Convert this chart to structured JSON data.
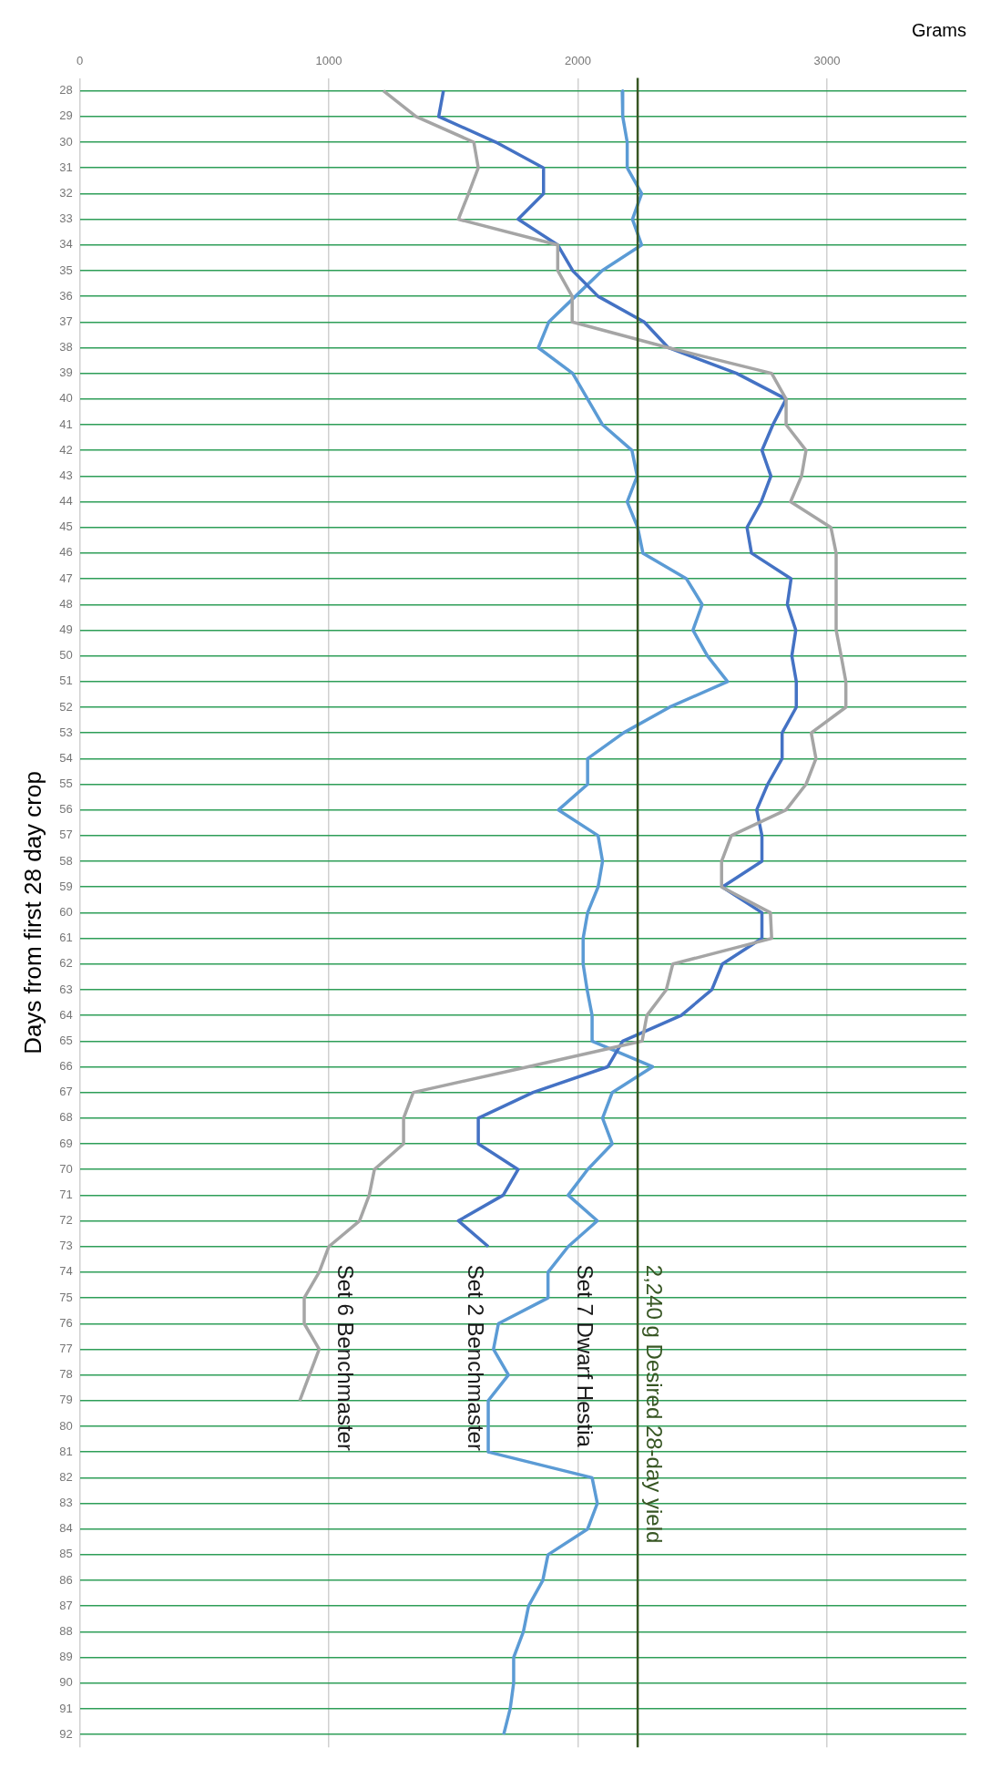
{
  "chart_data": {
    "type": "line",
    "orientation": "horizontal",
    "xlabel": "Grams",
    "ylabel": "Days from first 28 day crop",
    "categories": [
      "28",
      "29",
      "30",
      "31",
      "32",
      "33",
      "34",
      "35",
      "36",
      "37",
      "38",
      "39",
      "40",
      "41",
      "42",
      "43",
      "44",
      "45",
      "46",
      "47",
      "48",
      "49",
      "50",
      "51",
      "52",
      "53",
      "54",
      "55",
      "56",
      "57",
      "58",
      "59",
      "60",
      "61",
      "62",
      "63",
      "64",
      "65",
      "66",
      "67",
      "68",
      "69",
      "70",
      "71",
      "72",
      "73",
      "74",
      "75",
      "76",
      "77",
      "78",
      "79",
      "80",
      "81",
      "82",
      "83",
      "84",
      "85",
      "86",
      "87",
      "88",
      "89",
      "90",
      "91",
      "92"
    ],
    "xlim": [
      0,
      3560
    ],
    "xticks": [
      0,
      1000,
      2000,
      3000
    ],
    "grid": true,
    "legend": false,
    "marker": "none",
    "line_style": "solid",
    "series": [
      {
        "name": "Set 6 Benchmaster",
        "color": "#a5a5a5",
        "values": [
          1219,
          1350,
          1582,
          1600,
          1561,
          1520,
          1919,
          1919,
          1977,
          1977,
          2363,
          2778,
          2836,
          2836,
          2916,
          2898,
          2854,
          3016,
          3037,
          3037,
          3037,
          3037,
          3057,
          3076,
          3076,
          2937,
          2956,
          2916,
          2836,
          2616,
          2577,
          2577,
          2773,
          2778,
          2381,
          2355,
          2277,
          2258,
          1800,
          1339,
          1300,
          1300,
          1183,
          1162,
          1123,
          1000,
          961,
          901,
          901,
          961,
          922,
          883,
          null,
          null,
          null,
          null,
          null,
          null,
          null,
          null,
          null,
          null,
          null,
          null,
          null
        ]
      },
      {
        "name": "Set 2 Benchmaster",
        "color": "#4472c4",
        "values": [
          1460,
          1441,
          1671,
          1862,
          1862,
          1760,
          1919,
          1979,
          2081,
          2266,
          2363,
          2637,
          2836,
          2783,
          2739,
          2775,
          2736,
          2679,
          2697,
          2856,
          2841,
          2875,
          2859,
          2877,
          2877,
          2820,
          2820,
          2762,
          2718,
          2739,
          2739,
          2580,
          2739,
          2739,
          2580,
          2538,
          2415,
          2180,
          2120,
          1820,
          1600,
          1600,
          1760,
          1700,
          1520,
          1640,
          null,
          null,
          null,
          null,
          null,
          null,
          null,
          null,
          null,
          null,
          null,
          null,
          null,
          null,
          null,
          null,
          null,
          null,
          null
        ]
      },
      {
        "name": "Set 7 Dwarf Hestia",
        "color": "#5b9bd5",
        "values": [
          2178,
          2180,
          2198,
          2198,
          2256,
          2219,
          2256,
          2097,
          1990,
          1883,
          1841,
          1979,
          2039,
          2099,
          2217,
          2238,
          2198,
          2240,
          2261,
          2436,
          2499,
          2462,
          2520,
          2601,
          2368,
          2183,
          2039,
          2039,
          1922,
          2081,
          2099,
          2081,
          2039,
          2021,
          2021,
          2037,
          2057,
          2057,
          2300,
          2138,
          2099,
          2138,
          2039,
          1961,
          2078,
          1961,
          1880,
          1880,
          1681,
          1661,
          1721,
          1640,
          1640,
          1640,
          2057,
          2078,
          2039,
          1880,
          1859,
          1802,
          1781,
          1742,
          1742,
          1728,
          1702
        ]
      }
    ],
    "ref_lines": [
      {
        "axis": "x",
        "value": 2240,
        "label": "2,240 g Desired 28-day yield",
        "color": "#375623"
      }
    ]
  }
}
